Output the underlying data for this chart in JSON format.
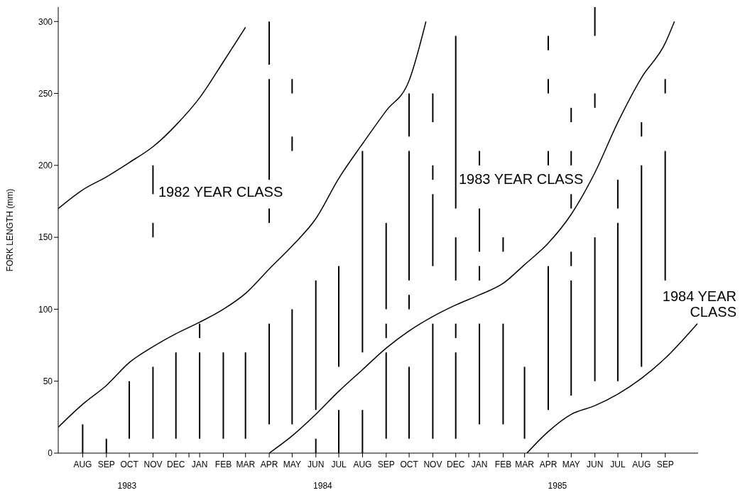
{
  "chart_data": {
    "type": "bar",
    "ylabel": "FORK LENGTH (mm)",
    "x": [
      "1983-08-15",
      "1983-09-15",
      "1983-10-15",
      "1983-11-15",
      "1983-12-15",
      "1984-01-15",
      "1984-02-15",
      "1984-03-15",
      "1984-04-15",
      "1984-05-15",
      "1984-06-15",
      "1984-07-15",
      "1984-08-15",
      "1984-09-15",
      "1984-10-15",
      "1984-11-15",
      "1984-12-15",
      "1985-01-15",
      "1985-02-15",
      "1985-03-15",
      "1985-04-15",
      "1985-05-15",
      "1985-06-15",
      "1985-07-15",
      "1985-08-15",
      "1985-09-15"
    ],
    "series": [
      {
        "color": "#000000",
        "base": [
          0,
          0,
          10,
          10,
          10,
          10,
          10,
          10,
          20,
          20,
          0,
          0,
          0,
          10,
          10,
          10,
          10,
          20,
          20,
          10,
          30,
          40,
          50,
          50,
          60,
          120
        ],
        "values": [
          20,
          10,
          40,
          50,
          60,
          60,
          60,
          60,
          70,
          80,
          10,
          30,
          30,
          60,
          50,
          80,
          60,
          70,
          70,
          50,
          100,
          80,
          100,
          110,
          140,
          90
        ]
      },
      {
        "color": "#000000",
        "base": [
          null,
          null,
          null,
          150,
          null,
          80,
          null,
          null,
          160,
          210,
          30,
          60,
          70,
          80,
          100,
          130,
          80,
          120,
          140,
          null,
          200,
          130,
          240,
          170,
          220,
          250
        ],
        "values": [
          null,
          null,
          null,
          10,
          null,
          10,
          null,
          null,
          10,
          10,
          90,
          70,
          140,
          10,
          10,
          50,
          10,
          10,
          10,
          null,
          10,
          10,
          10,
          20,
          10,
          10
        ]
      },
      {
        "color": "#000000",
        "base": [
          null,
          null,
          null,
          180,
          null,
          null,
          null,
          null,
          190,
          250,
          null,
          null,
          null,
          100,
          120,
          190,
          120,
          140,
          null,
          null,
          250,
          170,
          290,
          null,
          null,
          null
        ],
        "values": [
          null,
          null,
          null,
          20,
          null,
          null,
          null,
          null,
          70,
          10,
          null,
          null,
          null,
          60,
          90,
          10,
          30,
          30,
          null,
          null,
          10,
          10,
          20,
          null,
          null,
          null
        ]
      },
      {
        "color": "#000000",
        "base": [
          null,
          null,
          null,
          null,
          null,
          null,
          null,
          null,
          270,
          null,
          null,
          null,
          null,
          null,
          220,
          230,
          170,
          200,
          null,
          null,
          280,
          200,
          null,
          null,
          null,
          null
        ],
        "values": [
          null,
          null,
          null,
          null,
          null,
          null,
          null,
          null,
          30,
          null,
          null,
          null,
          null,
          null,
          30,
          20,
          120,
          10,
          null,
          null,
          10,
          10,
          null,
          null,
          null,
          null
        ]
      },
      {
        "color": "#000000",
        "base": [
          null,
          null,
          null,
          null,
          null,
          null,
          null,
          null,
          null,
          null,
          null,
          null,
          null,
          null,
          null,
          null,
          null,
          null,
          null,
          null,
          null,
          230,
          null,
          null,
          null,
          null
        ],
        "values": [
          null,
          null,
          null,
          null,
          null,
          null,
          null,
          null,
          null,
          null,
          null,
          null,
          null,
          null,
          null,
          null,
          null,
          null,
          null,
          null,
          null,
          10,
          null,
          null,
          null,
          null
        ]
      },
      {
        "type": "line",
        "color": "#000000",
        "x": [
          "1983-07-14",
          "1983-08-15",
          "1983-09-15",
          "1983-10-15",
          "1983-11-15",
          "1983-11-26",
          "1983-12-15",
          "1984-01-15",
          "1984-02-15",
          "1984-03-15"
        ],
        "values": [
          170,
          183,
          192,
          202,
          213,
          218,
          228,
          247,
          272,
          296
        ]
      },
      {
        "type": "line",
        "color": "#000000",
        "x": [
          "1983-07-14",
          "1983-08-15",
          "1983-09-15",
          "1983-10-15",
          "1983-11-15",
          "1983-12-15",
          "1984-01-15",
          "1984-02-15",
          "1984-03-15",
          "1984-04-15",
          "1984-05-15",
          "1984-06-15",
          "1984-07-15",
          "1984-08-15",
          "1984-09-15",
          "1984-10-15",
          "1984-11-06"
        ],
        "values": [
          18,
          34,
          47,
          63,
          74,
          83,
          91,
          100,
          111,
          128,
          144,
          163,
          191,
          215,
          238,
          259,
          300
        ]
      },
      {
        "type": "line",
        "color": "#000000",
        "x": [
          "1984-04-15",
          "1984-05-15",
          "1984-06-15",
          "1984-07-15",
          "1984-08-15",
          "1984-09-15",
          "1984-10-15",
          "1984-11-15",
          "1984-12-15",
          "1985-01-15",
          "1985-02-15",
          "1985-03-15",
          "1985-04-15",
          "1985-05-15",
          "1985-06-15",
          "1985-07-15",
          "1985-08-15",
          "1985-09-15",
          "1985-09-27"
        ],
        "values": [
          0,
          12,
          27,
          43,
          58,
          73,
          85,
          95,
          103,
          110,
          118,
          131,
          146,
          166,
          195,
          230,
          261,
          285,
          300
        ]
      },
      {
        "type": "line",
        "color": "#000000",
        "x": [
          "1985-03-18",
          "1985-04-15",
          "1985-05-15",
          "1985-06-15",
          "1985-07-15",
          "1985-08-15",
          "1985-09-15",
          "1985-10-27"
        ],
        "values": [
          0,
          15,
          27,
          33,
          41,
          52,
          66,
          90
        ]
      }
    ],
    "marker": "none",
    "xlim": [
      "1983-07-14",
      "1985-10-28"
    ],
    "xticks": [
      {
        "value": "1983-08-15",
        "label": "AUG"
      },
      {
        "value": "1983-09-15",
        "label": "SEP"
      },
      {
        "value": "1983-10-15",
        "label": "OCT"
      },
      {
        "value": "1983-11-15",
        "label": "NOV"
      },
      {
        "value": "1983-12-15",
        "label": "DEC"
      },
      {
        "value": "1984-01-01",
        "label": null
      },
      {
        "value": "1984-01-15",
        "label": "JAN"
      },
      {
        "value": "1984-02-15",
        "label": "FEB"
      },
      {
        "value": "1984-03-15",
        "label": "MAR"
      },
      {
        "value": "1984-04-15",
        "label": "APR"
      },
      {
        "value": "1984-05-15",
        "label": "MAY"
      },
      {
        "value": "1984-06-15",
        "label": "JUN"
      },
      {
        "value": "1984-07-15",
        "label": "JUL"
      },
      {
        "value": "1984-08-15",
        "label": "AUG"
      },
      {
        "value": "1984-09-15",
        "label": "SEP"
      },
      {
        "value": "1984-10-15",
        "label": "OCT"
      },
      {
        "value": "1984-11-15",
        "label": "NOV"
      },
      {
        "value": "1984-12-15",
        "label": "DEC"
      },
      {
        "value": "1985-01-01",
        "label": null
      },
      {
        "value": "1985-01-15",
        "label": "JAN"
      },
      {
        "value": "1985-02-15",
        "label": "FEB"
      },
      {
        "value": "1985-03-15",
        "label": "MAR"
      },
      {
        "value": "1985-04-15",
        "label": "APR"
      },
      {
        "value": "1985-05-15",
        "label": "MAY"
      },
      {
        "value": "1985-06-15",
        "label": "JUN"
      },
      {
        "value": "1985-07-15",
        "label": "JUL"
      },
      {
        "value": "1985-08-15",
        "label": "AUG"
      },
      {
        "value": "1985-09-15",
        "label": "SEP"
      }
    ],
    "x2lim": [
      "1983-07-14",
      "1985-10-28"
    ],
    "x2ticks": [
      {
        "value": "1983-10-12",
        "label": "1983"
      },
      {
        "value": "1984-06-24",
        "label": "1984"
      },
      {
        "value": "1985-04-27",
        "label": "1985"
      }
    ],
    "ylim": [
      0,
      310
    ],
    "yticks": [
      0,
      50,
      100,
      150,
      200,
      250,
      300
    ],
    "annotations": [
      "1982 YEAR CLASS",
      "1983 YEAR CLASS",
      "1984 YEAR\nCLASS"
    ]
  }
}
